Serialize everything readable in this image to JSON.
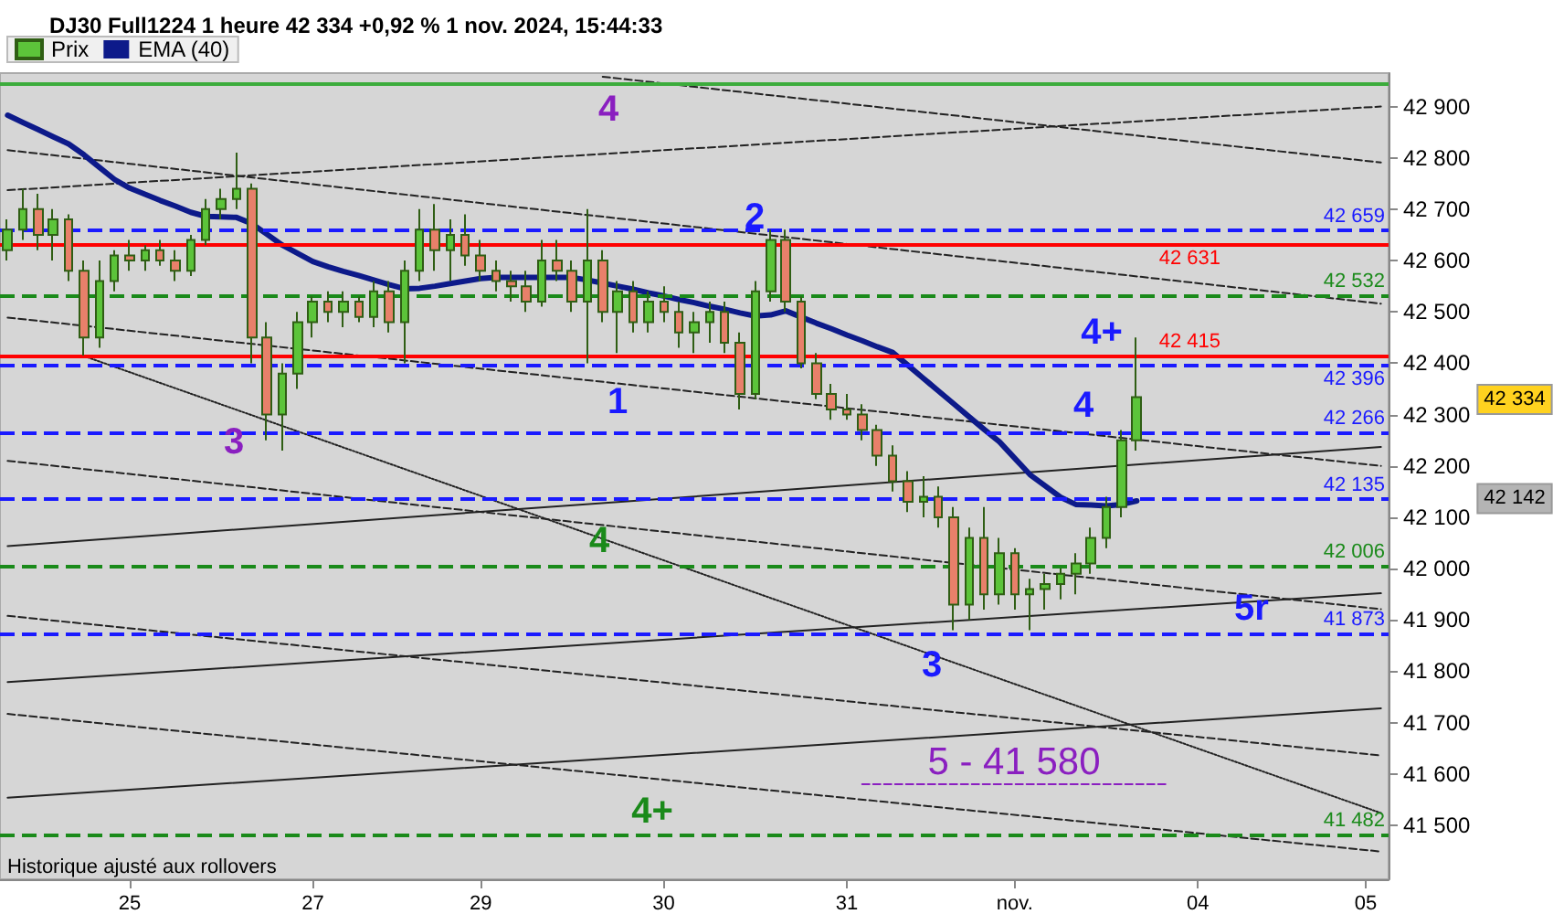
{
  "chart_data": {
    "type": "candlestick",
    "title": "DJ30 Full1224 1 heure 42 334 +0,92 % 1 nov. 2024, 15:44:33",
    "categories": [
      null,
      null,
      null,
      null,
      null,
      null,
      null,
      null,
      "25",
      null,
      null,
      null,
      null,
      null,
      null,
      null,
      null,
      null,
      null,
      null,
      "27",
      null,
      null,
      null,
      null,
      null,
      null,
      null,
      null,
      null,
      null,
      "29",
      null,
      null,
      null,
      null,
      null,
      null,
      null,
      null,
      null,
      null,
      null,
      "30",
      null,
      null,
      null,
      null,
      null,
      null,
      null,
      null,
      null,
      null,
      null,
      "31",
      null,
      null,
      null,
      null,
      null,
      null,
      null,
      null,
      null,
      null,
      "nov.",
      null,
      null,
      null,
      null,
      null,
      null,
      null,
      null,
      null,
      null,
      null,
      "04",
      null,
      null,
      null,
      null,
      null,
      null,
      null,
      null,
      null,
      null,
      "05",
      null
    ],
    "ylim": [
      41395,
      42965
    ],
    "yticks": [
      {
        "value": 41500,
        "label": "41 500"
      },
      {
        "value": 41600,
        "label": "41 600"
      },
      {
        "value": 41700,
        "label": "41 700"
      },
      {
        "value": 41800,
        "label": "41 800"
      },
      {
        "value": 41900,
        "label": "41 900"
      },
      {
        "value": 42000,
        "label": "42 000"
      },
      {
        "value": 42100,
        "label": "42 100"
      },
      {
        "value": 42200,
        "label": "42 200"
      },
      {
        "value": 42300,
        "label": "42 300"
      },
      {
        "value": 42400,
        "label": "42 400"
      },
      {
        "value": 42500,
        "label": "42 500"
      },
      {
        "value": 42600,
        "label": "42 600"
      },
      {
        "value": 42700,
        "label": "42 700"
      },
      {
        "value": 42800,
        "label": "42 800"
      },
      {
        "value": 42900,
        "label": "42 900"
      }
    ],
    "grid": false,
    "legend": "top left",
    "marker": "none",
    "series": [
      {
        "name": "Prix",
        "color": "#2f5e14",
        "ohlc": [
          [
            42620,
            42680,
            42600,
            42660
          ],
          [
            42660,
            42740,
            42640,
            42700
          ],
          [
            42700,
            42730,
            42620,
            42650
          ],
          [
            42650,
            42700,
            42600,
            42680
          ],
          [
            42680,
            42690,
            42560,
            42580
          ],
          [
            42580,
            42600,
            42415,
            42450
          ],
          [
            42450,
            42600,
            42430,
            42560
          ],
          [
            42560,
            42620,
            42540,
            42610
          ],
          [
            42610,
            42640,
            42580,
            42600
          ],
          [
            42600,
            42630,
            42580,
            42620
          ],
          [
            42620,
            42640,
            42590,
            42600
          ],
          [
            42600,
            42620,
            42560,
            42580
          ],
          [
            42580,
            42650,
            42570,
            42640
          ],
          [
            42640,
            42720,
            42630,
            42700
          ],
          [
            42700,
            42740,
            42680,
            42720
          ],
          [
            42720,
            42810,
            42700,
            42740
          ],
          [
            42740,
            42750,
            42400,
            42450
          ],
          [
            42450,
            42480,
            42250,
            42300
          ],
          [
            42300,
            42400,
            42230,
            42380
          ],
          [
            42380,
            42500,
            42350,
            42480
          ],
          [
            42480,
            42530,
            42450,
            42520
          ],
          [
            42520,
            42540,
            42480,
            42500
          ],
          [
            42500,
            42540,
            42470,
            42520
          ],
          [
            42520,
            42530,
            42480,
            42490
          ],
          [
            42490,
            42560,
            42470,
            42540
          ],
          [
            42540,
            42560,
            42460,
            42480
          ],
          [
            42480,
            42600,
            42400,
            42580
          ],
          [
            42580,
            42700,
            42560,
            42660
          ],
          [
            42660,
            42710,
            42580,
            42620
          ],
          [
            42620,
            42680,
            42560,
            42650
          ],
          [
            42650,
            42690,
            42590,
            42610
          ],
          [
            42610,
            42640,
            42560,
            42580
          ],
          [
            42580,
            42600,
            42540,
            42560
          ],
          [
            42560,
            42580,
            42520,
            42550
          ],
          [
            42550,
            42580,
            42500,
            42520
          ],
          [
            42520,
            42640,
            42510,
            42600
          ],
          [
            42600,
            42640,
            42560,
            42580
          ],
          [
            42580,
            42600,
            42500,
            42520
          ],
          [
            42520,
            42700,
            42400,
            42600
          ],
          [
            42600,
            42620,
            42480,
            42500
          ],
          [
            42500,
            42560,
            42420,
            42540
          ],
          [
            42540,
            42560,
            42460,
            42480
          ],
          [
            42480,
            42540,
            42460,
            42520
          ],
          [
            42520,
            42550,
            42480,
            42500
          ],
          [
            42500,
            42520,
            42430,
            42460
          ],
          [
            42460,
            42500,
            42420,
            42480
          ],
          [
            42480,
            42520,
            42440,
            42500
          ],
          [
            42500,
            42520,
            42420,
            42440
          ],
          [
            42440,
            42460,
            42310,
            42340
          ],
          [
            42340,
            42560,
            42330,
            42540
          ],
          [
            42540,
            42660,
            42520,
            42640
          ],
          [
            42640,
            42660,
            42500,
            42520
          ],
          [
            42520,
            42530,
            42390,
            42400
          ],
          [
            42400,
            42420,
            42330,
            42340
          ],
          [
            42340,
            42360,
            42290,
            42310
          ],
          [
            42310,
            42340,
            42290,
            42300
          ],
          [
            42300,
            42320,
            42250,
            42270
          ],
          [
            42270,
            42280,
            42200,
            42220
          ],
          [
            42220,
            42240,
            42150,
            42170
          ],
          [
            42170,
            42190,
            42110,
            42130
          ],
          [
            42130,
            42180,
            42100,
            42140
          ],
          [
            42140,
            42160,
            42080,
            42100
          ],
          [
            42100,
            42120,
            41880,
            41930
          ],
          [
            41930,
            42080,
            41900,
            42060
          ],
          [
            42060,
            42120,
            41920,
            41950
          ],
          [
            41950,
            42060,
            41930,
            42030
          ],
          [
            42030,
            42040,
            41920,
            41950
          ],
          [
            41950,
            41980,
            41880,
            41960
          ],
          [
            41960,
            41990,
            41920,
            41970
          ],
          [
            41970,
            42000,
            41940,
            41990
          ],
          [
            41990,
            42030,
            41950,
            42010
          ],
          [
            42010,
            42080,
            41990,
            42060
          ],
          [
            42060,
            42140,
            42040,
            42120
          ],
          [
            42120,
            42270,
            42100,
            42250
          ],
          [
            42250,
            42450,
            42230,
            42334
          ],
          null,
          null,
          null,
          null,
          null,
          null,
          null,
          null,
          null,
          null,
          null,
          null,
          null,
          null,
          null,
          null
        ],
        "colors": [
          "#5cc43a",
          "#5cc43a",
          "#e8806a",
          "#5cc43a",
          "#e8806a",
          "#e8806a",
          "#5cc43a",
          "#5cc43a",
          "#e8806a",
          "#5cc43a",
          "#e8806a",
          "#e8806a",
          "#5cc43a",
          "#5cc43a",
          "#5cc43a",
          "#5cc43a",
          "#e8806a",
          "#e8806a",
          "#5cc43a",
          "#5cc43a",
          "#5cc43a",
          "#e8806a",
          "#5cc43a",
          "#e8806a",
          "#5cc43a",
          "#e8806a",
          "#5cc43a",
          "#5cc43a",
          "#e8806a",
          "#5cc43a",
          "#e8806a",
          "#e8806a",
          "#e8806a",
          "#e8806a",
          "#e8806a",
          "#5cc43a",
          "#e8806a",
          "#e8806a",
          "#5cc43a",
          "#e8806a",
          "#5cc43a",
          "#e8806a",
          "#5cc43a",
          "#e8806a",
          "#e8806a",
          "#5cc43a",
          "#5cc43a",
          "#e8806a",
          "#e8806a",
          "#5cc43a",
          "#5cc43a",
          "#e8806a",
          "#e8806a",
          "#e8806a",
          "#e8806a",
          "#e8806a",
          "#e8806a",
          "#e8806a",
          "#e8806a",
          "#e8806a",
          "#5cc43a",
          "#e8806a",
          "#e8806a",
          "#5cc43a",
          "#e8806a",
          "#5cc43a",
          "#e8806a",
          "#5cc43a",
          "#5cc43a",
          "#5cc43a",
          "#5cc43a",
          "#5cc43a",
          "#5cc43a",
          "#5cc43a",
          "#5cc43a",
          null,
          null,
          null,
          null,
          null,
          null,
          null,
          null,
          null,
          null,
          null,
          null,
          null,
          null,
          null,
          null
        ]
      },
      {
        "name": "EMA (40)",
        "type": "line",
        "color": "#0d1a8a",
        "line_style": "solid",
        "values": [
          42883,
          42869,
          42855,
          42841,
          42827,
          42806,
          42782,
          42758,
          42741,
          42729,
          42717,
          42706,
          42694,
          42686,
          42685,
          42684,
          42672,
          42651,
          42630,
          42614,
          42598,
          42588,
          42579,
          42571,
          42562,
          42553,
          42545,
          42546,
          42550,
          42555,
          42560,
          42565,
          42567,
          42567,
          42567,
          42567,
          42567,
          42567,
          42562,
          42556,
          42550,
          42544,
          42537,
          42531,
          42524,
          42518,
          42511,
          42505,
          42498,
          42492,
          42494,
          42502,
          42490,
          42478,
          42467,
          42455,
          42444,
          42432,
          42421,
          42396,
          42371,
          42346,
          42321,
          42296,
          42271,
          42247,
          42215,
          42183,
          42161,
          42139,
          42125,
          42124,
          42122,
          42125,
          42132,
          null,
          null,
          null,
          null,
          null,
          null,
          null,
          null,
          null,
          null,
          null,
          null,
          null,
          null,
          null,
          null
        ]
      },
      {
        "type": "line",
        "color": "#222222",
        "line_style": "solid",
        "values": [
          42044,
          null,
          null,
          null,
          null,
          null,
          null,
          null,
          null,
          null,
          null,
          null,
          null,
          null,
          null,
          null,
          null,
          null,
          null,
          null,
          null,
          null,
          null,
          null,
          null,
          null,
          null,
          null,
          null,
          null,
          null,
          null,
          null,
          null,
          null,
          null,
          null,
          null,
          null,
          null,
          null,
          null,
          null,
          null,
          null,
          null,
          null,
          null,
          null,
          null,
          null,
          null,
          null,
          null,
          null,
          null,
          null,
          null,
          null,
          null,
          null,
          null,
          null,
          null,
          null,
          null,
          null,
          null,
          null,
          null,
          null,
          null,
          null,
          null,
          null,
          null,
          null,
          null,
          null,
          null,
          null,
          null,
          null,
          null,
          null,
          null,
          null,
          null,
          null,
          null,
          42237
        ]
      },
      {
        "type": "line",
        "color": "#222222",
        "line_style": "solid",
        "values": [
          41779,
          null,
          null,
          null,
          null,
          null,
          null,
          null,
          null,
          null,
          null,
          null,
          null,
          null,
          null,
          null,
          null,
          null,
          null,
          null,
          null,
          null,
          null,
          null,
          null,
          null,
          null,
          null,
          null,
          null,
          null,
          null,
          null,
          null,
          null,
          null,
          null,
          null,
          null,
          null,
          null,
          null,
          null,
          null,
          null,
          null,
          null,
          null,
          null,
          null,
          null,
          null,
          null,
          null,
          null,
          null,
          null,
          null,
          null,
          null,
          null,
          null,
          null,
          null,
          null,
          null,
          null,
          null,
          null,
          null,
          null,
          null,
          null,
          null,
          null,
          null,
          null,
          null,
          null,
          null,
          null,
          null,
          null,
          null,
          null,
          null,
          null,
          null,
          null,
          null,
          41952
        ]
      },
      {
        "type": "line",
        "color": "#222222",
        "line_style": "solid",
        "values": [
          41554,
          null,
          null,
          null,
          null,
          null,
          null,
          null,
          null,
          null,
          null,
          null,
          null,
          null,
          null,
          null,
          null,
          null,
          null,
          null,
          null,
          null,
          null,
          null,
          null,
          null,
          null,
          null,
          null,
          null,
          null,
          null,
          null,
          null,
          null,
          null,
          null,
          null,
          null,
          null,
          null,
          null,
          null,
          null,
          null,
          null,
          null,
          null,
          null,
          null,
          null,
          null,
          null,
          null,
          null,
          null,
          null,
          null,
          null,
          null,
          null,
          null,
          null,
          null,
          null,
          null,
          null,
          null,
          null,
          null,
          null,
          null,
          null,
          null,
          null,
          null,
          null,
          null,
          null,
          null,
          null,
          null,
          null,
          null,
          null,
          null,
          null,
          null,
          null,
          null,
          41728
        ]
      },
      {
        "type": "line",
        "color": "#222222",
        "line_style": "dashed",
        "values": [
          42815,
          null,
          null,
          null,
          null,
          null,
          null,
          null,
          null,
          null,
          null,
          null,
          null,
          null,
          null,
          null,
          null,
          null,
          null,
          null,
          null,
          null,
          null,
          null,
          null,
          null,
          null,
          null,
          null,
          null,
          null,
          null,
          null,
          null,
          null,
          null,
          null,
          null,
          null,
          null,
          null,
          null,
          null,
          null,
          null,
          null,
          null,
          null,
          null,
          null,
          null,
          null,
          null,
          null,
          null,
          null,
          null,
          null,
          null,
          null,
          null,
          null,
          null,
          null,
          null,
          null,
          null,
          null,
          null,
          null,
          null,
          null,
          null,
          null,
          null,
          null,
          null,
          null,
          null,
          null,
          null,
          null,
          null,
          null,
          null,
          null,
          null,
          null,
          null,
          null,
          42516
        ]
      },
      {
        "type": "line",
        "color": "#222222",
        "line_style": "dashed",
        "values": [
          42737,
          null,
          null,
          null,
          null,
          null,
          null,
          null,
          null,
          null,
          null,
          null,
          null,
          null,
          null,
          null,
          null,
          null,
          null,
          null,
          null,
          null,
          null,
          null,
          null,
          null,
          null,
          null,
          null,
          null,
          null,
          null,
          null,
          null,
          null,
          null,
          null,
          null,
          null,
          null,
          null,
          null,
          null,
          null,
          null,
          null,
          null,
          null,
          null,
          null,
          null,
          null,
          null,
          null,
          null,
          null,
          null,
          null,
          null,
          null,
          null,
          null,
          null,
          null,
          null,
          null,
          null,
          null,
          null,
          null,
          null,
          null,
          null,
          null,
          null,
          null,
          null,
          null,
          null,
          null,
          null,
          null,
          null,
          null,
          null,
          null,
          null,
          null,
          null,
          null,
          42900
        ]
      },
      {
        "type": "line",
        "color": "#222222",
        "line_style": "dashed",
        "values": [
          null,
          null,
          null,
          null,
          null,
          null,
          null,
          null,
          null,
          null,
          null,
          null,
          null,
          null,
          null,
          null,
          null,
          null,
          null,
          null,
          null,
          null,
          null,
          null,
          null,
          null,
          null,
          null,
          null,
          null,
          null,
          null,
          null,
          null,
          null,
          null,
          null,
          null,
          null,
          42958,
          null,
          null,
          null,
          null,
          null,
          null,
          null,
          null,
          null,
          null,
          null,
          null,
          null,
          null,
          null,
          null,
          null,
          null,
          null,
          null,
          null,
          null,
          null,
          null,
          null,
          null,
          null,
          null,
          null,
          null,
          null,
          null,
          null,
          null,
          null,
          null,
          null,
          null,
          null,
          null,
          null,
          null,
          null,
          null,
          null,
          null,
          null,
          null,
          null,
          null,
          42791
        ]
      },
      {
        "type": "line",
        "color": "#222222",
        "line_style": "dashed",
        "values": [
          42489,
          null,
          null,
          null,
          null,
          null,
          null,
          null,
          null,
          null,
          null,
          null,
          null,
          null,
          null,
          null,
          null,
          null,
          null,
          null,
          null,
          null,
          null,
          null,
          null,
          null,
          null,
          null,
          null,
          null,
          null,
          null,
          null,
          null,
          null,
          null,
          null,
          null,
          null,
          null,
          null,
          null,
          null,
          null,
          null,
          null,
          null,
          null,
          null,
          null,
          null,
          null,
          null,
          null,
          null,
          null,
          null,
          null,
          null,
          null,
          null,
          null,
          null,
          null,
          null,
          null,
          null,
          null,
          null,
          null,
          null,
          null,
          null,
          null,
          null,
          null,
          null,
          null,
          null,
          null,
          null,
          null,
          null,
          null,
          null,
          null,
          null,
          null,
          null,
          null,
          42200
        ]
      },
      {
        "type": "line",
        "color": "#222222",
        "line_style": "dashed",
        "values": [
          42210,
          null,
          null,
          null,
          null,
          null,
          null,
          null,
          null,
          null,
          null,
          null,
          null,
          null,
          null,
          null,
          null,
          null,
          null,
          null,
          null,
          null,
          null,
          null,
          null,
          null,
          null,
          null,
          null,
          null,
          null,
          null,
          null,
          null,
          null,
          null,
          null,
          null,
          null,
          null,
          null,
          null,
          null,
          null,
          null,
          null,
          null,
          null,
          null,
          null,
          null,
          null,
          null,
          null,
          null,
          null,
          null,
          null,
          null,
          null,
          null,
          null,
          null,
          null,
          null,
          null,
          null,
          null,
          null,
          null,
          null,
          null,
          null,
          null,
          null,
          null,
          null,
          null,
          null,
          null,
          null,
          null,
          null,
          null,
          null,
          null,
          null,
          null,
          null,
          null,
          41921
        ]
      },
      {
        "type": "line",
        "color": "#222222",
        "line_style": "dashed",
        "values": [
          41908,
          null,
          null,
          null,
          null,
          null,
          null,
          null,
          null,
          null,
          null,
          null,
          null,
          null,
          null,
          null,
          null,
          null,
          null,
          null,
          null,
          null,
          null,
          null,
          null,
          null,
          null,
          null,
          null,
          null,
          null,
          null,
          null,
          null,
          null,
          null,
          null,
          null,
          null,
          null,
          null,
          null,
          null,
          null,
          null,
          null,
          null,
          null,
          null,
          null,
          null,
          null,
          null,
          null,
          null,
          null,
          null,
          null,
          null,
          null,
          null,
          null,
          null,
          null,
          null,
          null,
          null,
          null,
          null,
          null,
          null,
          null,
          null,
          null,
          null,
          null,
          null,
          null,
          null,
          null,
          null,
          null,
          null,
          null,
          null,
          null,
          null,
          null,
          null,
          null,
          41636
        ]
      },
      {
        "type": "line",
        "color": "#222222",
        "line_style": "dashed",
        "values": [
          41717,
          null,
          null,
          null,
          null,
          null,
          null,
          null,
          null,
          null,
          null,
          null,
          null,
          null,
          null,
          null,
          null,
          null,
          null,
          null,
          null,
          null,
          null,
          null,
          null,
          null,
          null,
          null,
          null,
          null,
          null,
          null,
          null,
          null,
          null,
          null,
          null,
          null,
          null,
          null,
          null,
          null,
          null,
          null,
          null,
          null,
          null,
          null,
          null,
          null,
          null,
          null,
          null,
          null,
          null,
          null,
          null,
          null,
          null,
          null,
          null,
          null,
          null,
          null,
          null,
          null,
          null,
          null,
          null,
          null,
          null,
          null,
          null,
          null,
          null,
          null,
          null,
          null,
          null,
          null,
          null,
          null,
          null,
          null,
          null,
          null,
          null,
          null,
          null,
          null,
          41449
        ]
      },
      {
        "type": "line",
        "color": "#222222",
        "line_style": "dotted",
        "values": [
          null,
          null,
          null,
          null,
          null,
          42414,
          null,
          null,
          null,
          null,
          null,
          null,
          null,
          null,
          null,
          null,
          null,
          null,
          null,
          null,
          null,
          null,
          null,
          null,
          null,
          null,
          null,
          null,
          null,
          null,
          null,
          null,
          null,
          null,
          null,
          null,
          null,
          null,
          null,
          null,
          null,
          null,
          null,
          null,
          null,
          null,
          null,
          null,
          null,
          null,
          null,
          null,
          null,
          null,
          null,
          null,
          null,
          null,
          null,
          null,
          null,
          null,
          null,
          null,
          null,
          null,
          null,
          null,
          null,
          null,
          null,
          null,
          null,
          null,
          null,
          null,
          null,
          null,
          null,
          null,
          null,
          null,
          null,
          null,
          null,
          null,
          null,
          null,
          null,
          null,
          41524
        ]
      },
      {
        "type": "line",
        "color": "#8a1fc0",
        "line_style": "dashed",
        "values": [
          null,
          null,
          null,
          null,
          null,
          null,
          null,
          null,
          null,
          null,
          null,
          null,
          null,
          null,
          null,
          null,
          null,
          null,
          null,
          null,
          null,
          null,
          null,
          null,
          null,
          null,
          null,
          null,
          null,
          null,
          null,
          null,
          null,
          null,
          null,
          null,
          null,
          null,
          null,
          null,
          null,
          null,
          null,
          null,
          null,
          null,
          null,
          null,
          null,
          null,
          null,
          null,
          null,
          null,
          null,
          null,
          41580,
          null,
          null,
          null,
          null,
          null,
          null,
          null,
          null,
          null,
          null,
          null,
          null,
          null,
          null,
          null,
          null,
          null,
          null,
          null,
          41580,
          null,
          null,
          null,
          null,
          null,
          null,
          null,
          null,
          null,
          null,
          null,
          null,
          null,
          null
        ]
      }
    ],
    "ref_lines": [
      {
        "axis": "y",
        "value": 42944,
        "label": null,
        "color": "#3cac3c",
        "line_style": "solid"
      },
      {
        "axis": "y",
        "value": 42631,
        "label": "42 631",
        "color": "#ff0000",
        "line_style": "solid"
      },
      {
        "axis": "y",
        "value": 42415,
        "label": "42 415",
        "color": "#ff0000",
        "line_style": "solid"
      },
      {
        "axis": "y",
        "value": 42659,
        "label": "42 659",
        "color": "#1a1aff",
        "line_style": "dashed"
      },
      {
        "axis": "y",
        "value": 42532,
        "label": "42 532",
        "color": "#1a8a1a",
        "line_style": "dashed"
      },
      {
        "axis": "y",
        "value": 42396,
        "label": "42 396",
        "color": "#1a1aff",
        "line_style": "dashed"
      },
      {
        "axis": "y",
        "value": 42266,
        "label": "42 266",
        "color": "#1a1aff",
        "line_style": "dashed"
      },
      {
        "axis": "y",
        "value": 42135,
        "label": "42 135",
        "color": "#1a1aff",
        "line_style": "dashed"
      },
      {
        "axis": "y",
        "value": 42006,
        "label": "42 006",
        "color": "#1a8a1a",
        "line_style": "dashed"
      },
      {
        "axis": "y",
        "value": 41873,
        "label": "41 873",
        "color": "#1a1aff",
        "line_style": "dashed"
      },
      {
        "axis": "y",
        "value": 41482,
        "label": "41 482",
        "color": "#1a8a1a",
        "line_style": "dashed"
      }
    ],
    "annotations": [
      "4",
      "3",
      "1",
      "2",
      "4+",
      "4",
      "4",
      "3",
      "5r",
      "4+",
      "5 - 41 580",
      "42 334",
      "42 142",
      "Historique ajusté aux rollovers"
    ]
  }
}
